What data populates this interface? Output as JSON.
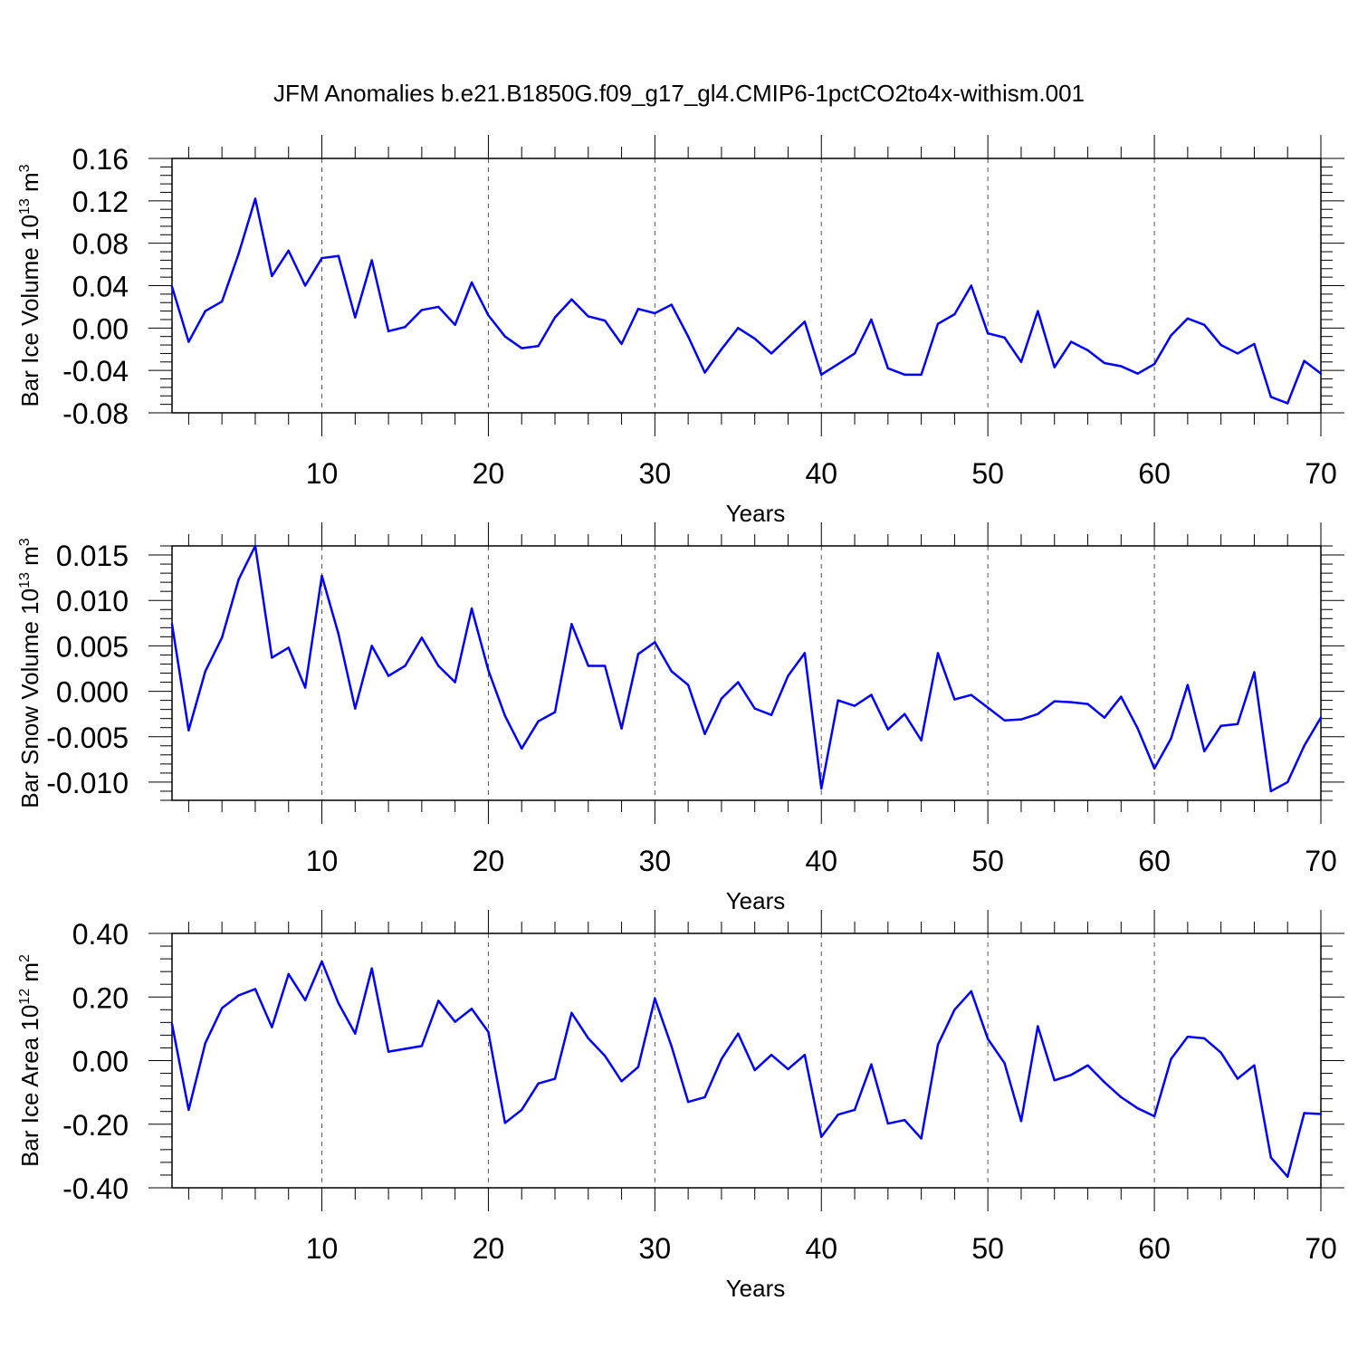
{
  "chart_data": {
    "title": "JFM Anomalies b.e21.B1850G.f09_g17_gl4.CMIP6-1pctCO2to4x-withism.001",
    "line_color": "#0000ff",
    "x": [
      1,
      2,
      3,
      4,
      5,
      6,
      7,
      8,
      9,
      10,
      11,
      12,
      13,
      14,
      15,
      16,
      17,
      18,
      19,
      20,
      21,
      22,
      23,
      24,
      25,
      26,
      27,
      28,
      29,
      30,
      31,
      32,
      33,
      34,
      35,
      36,
      37,
      38,
      39,
      40,
      41,
      42,
      43,
      44,
      45,
      46,
      47,
      48,
      49,
      50,
      51,
      52,
      53,
      54,
      55,
      56,
      57,
      58,
      59,
      60,
      61,
      62,
      63,
      64,
      65,
      66,
      67,
      68,
      69,
      70
    ],
    "xlim": [
      1,
      70
    ],
    "xticks": [
      10,
      20,
      30,
      40,
      50,
      60,
      70
    ],
    "panels": [
      {
        "type": "line",
        "ylabel_main": "Bar Ice Volume 10",
        "ylabel_exp": "13",
        "ylabel_unit": "m",
        "ylabel_unit_exp": "3",
        "xlabel": "Years",
        "ylim": [
          -0.08,
          0.16
        ],
        "yticks": [
          -0.08,
          -0.04,
          0.0,
          0.04,
          0.08,
          0.12,
          0.16
        ],
        "ytick_labels": [
          "-0.08",
          "-0.04",
          "0.00",
          "0.04",
          "0.08",
          "0.12",
          "0.16"
        ],
        "values": [
          0.039,
          -0.013,
          0.016,
          0.025,
          0.07,
          0.122,
          0.049,
          0.073,
          0.04,
          0.066,
          0.068,
          0.01,
          0.064,
          -0.003,
          0.001,
          0.017,
          0.02,
          0.003,
          0.043,
          0.012,
          -0.008,
          -0.019,
          -0.017,
          0.01,
          0.027,
          0.011,
          0.007,
          -0.015,
          0.018,
          0.014,
          0.022,
          -0.008,
          -0.042,
          -0.02,
          0.0,
          -0.01,
          -0.024,
          -0.009,
          0.006,
          -0.044,
          -0.034,
          -0.024,
          0.008,
          -0.038,
          -0.044,
          -0.044,
          0.004,
          0.013,
          0.04,
          -0.005,
          -0.009,
          -0.032,
          0.016,
          -0.037,
          -0.013,
          -0.021,
          -0.033,
          -0.036,
          -0.043,
          -0.034,
          -0.007,
          0.009,
          0.003,
          -0.016,
          -0.024,
          -0.015,
          -0.065,
          -0.071,
          -0.031,
          -0.043
        ]
      },
      {
        "type": "line",
        "ylabel_main": "Bar Snow Volume 10",
        "ylabel_exp": "13",
        "ylabel_unit": "m",
        "ylabel_unit_exp": "3",
        "xlabel": "Years",
        "ylim": [
          -0.012,
          0.016
        ],
        "yticks": [
          -0.01,
          -0.005,
          0.0,
          0.005,
          0.01,
          0.015
        ],
        "ytick_labels": [
          "-0.010",
          "-0.005",
          "0.000",
          "0.005",
          "0.010",
          "0.015"
        ],
        "values": [
          0.0074,
          -0.0043,
          0.0022,
          0.0059,
          0.0123,
          0.016,
          0.0037,
          0.0048,
          0.0004,
          0.0127,
          0.0063,
          -0.0019,
          0.005,
          0.0017,
          0.0028,
          0.0059,
          0.0028,
          0.001,
          0.0091,
          0.0023,
          -0.0027,
          -0.0063,
          -0.0033,
          -0.0023,
          0.0074,
          0.0028,
          0.0028,
          -0.0041,
          0.0041,
          0.0054,
          0.0022,
          0.0007,
          -0.0047,
          -0.0008,
          0.001,
          -0.0019,
          -0.0026,
          0.0017,
          0.0042,
          -0.0107,
          -0.001,
          -0.0016,
          -0.0004,
          -0.0042,
          -0.0025,
          -0.0054,
          0.0042,
          -0.0009,
          -0.0004,
          -0.0018,
          -0.0032,
          -0.0031,
          -0.0025,
          -0.0011,
          -0.0012,
          -0.0014,
          -0.0029,
          -0.0006,
          -0.0041,
          -0.0085,
          -0.0052,
          0.0007,
          -0.0066,
          -0.0038,
          -0.0036,
          0.0021,
          -0.011,
          -0.01,
          -0.006,
          -0.0029
        ]
      },
      {
        "type": "line",
        "ylabel_main": "Bar Ice Area 10",
        "ylabel_exp": "12",
        "ylabel_unit": "m",
        "ylabel_unit_exp": "2",
        "xlabel": "Years",
        "ylim": [
          -0.4,
          0.4
        ],
        "yticks": [
          -0.4,
          -0.2,
          0.0,
          0.2,
          0.4
        ],
        "ytick_labels": [
          "-0.40",
          "-0.20",
          "0.00",
          "0.20",
          "0.40"
        ],
        "values": [
          0.115,
          -0.155,
          0.055,
          0.165,
          0.205,
          0.225,
          0.105,
          0.272,
          0.19,
          0.312,
          0.18,
          0.085,
          0.29,
          0.028,
          0.037,
          0.046,
          0.188,
          0.122,
          0.163,
          0.09,
          -0.196,
          -0.155,
          -0.072,
          -0.057,
          0.15,
          0.07,
          0.015,
          -0.065,
          -0.02,
          0.195,
          0.045,
          -0.13,
          -0.115,
          0.005,
          0.085,
          -0.03,
          0.018,
          -0.027,
          0.018,
          -0.24,
          -0.17,
          -0.155,
          -0.012,
          -0.198,
          -0.187,
          -0.245,
          0.05,
          0.16,
          0.218,
          0.068,
          -0.008,
          -0.19,
          0.108,
          -0.062,
          -0.045,
          -0.015,
          -0.068,
          -0.115,
          -0.15,
          -0.175,
          0.005,
          0.075,
          0.07,
          0.025,
          -0.057,
          -0.015,
          -0.305,
          -0.365,
          -0.165,
          -0.168
        ]
      }
    ]
  }
}
